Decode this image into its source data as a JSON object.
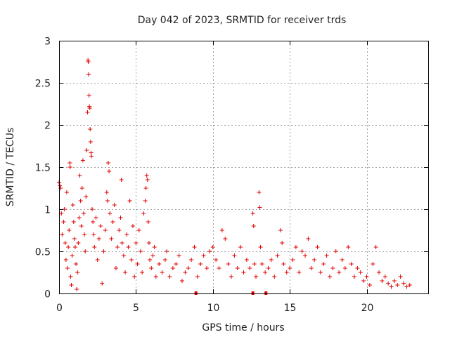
{
  "colors": {
    "series": "#e00000",
    "grid": "#a0a0a0",
    "frame": "#000000"
  },
  "chart_data": {
    "type": "scatter",
    "title": "Day 042 of 2023, SRMTID for receiver trds",
    "xlabel": "GPS time / hours",
    "ylabel": "SRMTID / TECUs",
    "xlim": [
      0,
      24
    ],
    "ylim": [
      0,
      3
    ],
    "grid": true,
    "marker": "+",
    "x_ticks": [
      {
        "value": 0,
        "label": "0"
      },
      {
        "value": 5,
        "label": "5"
      },
      {
        "value": 10,
        "label": "10"
      },
      {
        "value": 15,
        "label": "15"
      },
      {
        "value": 20,
        "label": "20"
      }
    ],
    "y_ticks": [
      {
        "value": 0,
        "label": "0"
      },
      {
        "value": 0.5,
        "label": "0.5"
      },
      {
        "value": 1,
        "label": "1"
      },
      {
        "value": 1.5,
        "label": "1.5"
      },
      {
        "value": 2,
        "label": "2"
      },
      {
        "value": 2.5,
        "label": "2.5"
      },
      {
        "value": 3,
        "label": "3"
      }
    ],
    "series": [
      {
        "name": "SRMTID",
        "points": [
          [
            0.0,
            1.32
          ],
          [
            0.05,
            1.28
          ],
          [
            0.1,
            1.25
          ],
          [
            0.15,
            0.95
          ],
          [
            0.2,
            0.7
          ],
          [
            0.3,
            0.85
          ],
          [
            0.35,
            1.0
          ],
          [
            0.4,
            0.6
          ],
          [
            0.45,
            0.4
          ],
          [
            0.5,
            1.2
          ],
          [
            0.55,
            0.3
          ],
          [
            0.6,
            0.55
          ],
          [
            0.65,
            0.75
          ],
          [
            0.7,
            1.55
          ],
          [
            0.72,
            1.5
          ],
          [
            0.75,
            0.2
          ],
          [
            0.8,
            0.1
          ],
          [
            0.85,
            0.45
          ],
          [
            0.9,
            1.05
          ],
          [
            0.95,
            0.85
          ],
          [
            1.0,
            0.65
          ],
          [
            1.05,
            0.55
          ],
          [
            1.1,
            0.35
          ],
          [
            1.15,
            0.05
          ],
          [
            1.2,
            0.25
          ],
          [
            1.25,
            0.6
          ],
          [
            1.3,
            0.9
          ],
          [
            1.35,
            1.4
          ],
          [
            1.4,
            1.1
          ],
          [
            1.45,
            0.8
          ],
          [
            1.5,
            1.25
          ],
          [
            1.55,
            1.58
          ],
          [
            1.6,
            0.95
          ],
          [
            1.65,
            0.7
          ],
          [
            1.7,
            0.5
          ],
          [
            1.75,
            1.15
          ],
          [
            1.8,
            1.7
          ],
          [
            1.85,
            2.15
          ],
          [
            1.88,
            2.77
          ],
          [
            1.9,
            2.75
          ],
          [
            1.92,
            2.6
          ],
          [
            1.95,
            2.35
          ],
          [
            1.97,
            2.22
          ],
          [
            2.0,
            2.2
          ],
          [
            2.02,
            1.95
          ],
          [
            2.05,
            1.8
          ],
          [
            2.08,
            1.67
          ],
          [
            2.1,
            1.63
          ],
          [
            2.15,
            1.0
          ],
          [
            2.2,
            0.85
          ],
          [
            2.25,
            0.7
          ],
          [
            2.3,
            0.55
          ],
          [
            2.4,
            0.9
          ],
          [
            2.5,
            0.4
          ],
          [
            2.6,
            0.65
          ],
          [
            2.7,
            0.8
          ],
          [
            2.8,
            0.12
          ],
          [
            2.9,
            0.5
          ],
          [
            3.0,
            0.75
          ],
          [
            3.1,
            1.2
          ],
          [
            3.15,
            1.1
          ],
          [
            3.2,
            1.55
          ],
          [
            3.25,
            1.45
          ],
          [
            3.3,
            0.95
          ],
          [
            3.4,
            0.65
          ],
          [
            3.5,
            0.85
          ],
          [
            3.6,
            1.05
          ],
          [
            3.7,
            0.3
          ],
          [
            3.8,
            0.55
          ],
          [
            3.9,
            0.75
          ],
          [
            4.0,
            0.9
          ],
          [
            4.05,
            1.35
          ],
          [
            4.1,
            0.6
          ],
          [
            4.2,
            0.45
          ],
          [
            4.3,
            0.25
          ],
          [
            4.4,
            0.7
          ],
          [
            4.5,
            0.55
          ],
          [
            4.6,
            1.1
          ],
          [
            4.7,
            0.4
          ],
          [
            4.8,
            0.8
          ],
          [
            4.9,
            0.2
          ],
          [
            5.0,
            0.6
          ],
          [
            5.1,
            0.35
          ],
          [
            5.2,
            0.75
          ],
          [
            5.3,
            0.5
          ],
          [
            5.4,
            0.25
          ],
          [
            5.5,
            0.95
          ],
          [
            5.6,
            1.1
          ],
          [
            5.65,
            1.25
          ],
          [
            5.7,
            1.4
          ],
          [
            5.75,
            1.35
          ],
          [
            5.8,
            0.85
          ],
          [
            5.85,
            0.6
          ],
          [
            5.9,
            0.4
          ],
          [
            6.0,
            0.3
          ],
          [
            6.1,
            0.45
          ],
          [
            6.2,
            0.55
          ],
          [
            6.3,
            0.2
          ],
          [
            6.5,
            0.35
          ],
          [
            6.7,
            0.25
          ],
          [
            6.9,
            0.4
          ],
          [
            7.0,
            0.5
          ],
          [
            7.2,
            0.2
          ],
          [
            7.4,
            0.3
          ],
          [
            7.6,
            0.35
          ],
          [
            7.8,
            0.45
          ],
          [
            8.0,
            0.15
          ],
          [
            8.2,
            0.25
          ],
          [
            8.4,
            0.3
          ],
          [
            8.6,
            0.4
          ],
          [
            8.8,
            0.55
          ],
          [
            9.0,
            0.2
          ],
          [
            9.2,
            0.35
          ],
          [
            9.4,
            0.45
          ],
          [
            9.6,
            0.3
          ],
          [
            9.8,
            0.5
          ],
          [
            10.0,
            0.55
          ],
          [
            10.2,
            0.4
          ],
          [
            10.4,
            0.3
          ],
          [
            10.6,
            0.75
          ],
          [
            10.8,
            0.65
          ],
          [
            11.0,
            0.35
          ],
          [
            11.2,
            0.2
          ],
          [
            11.4,
            0.45
          ],
          [
            11.6,
            0.3
          ],
          [
            11.8,
            0.55
          ],
          [
            12.0,
            0.25
          ],
          [
            12.2,
            0.4
          ],
          [
            12.4,
            0.3
          ],
          [
            12.6,
            0.95
          ],
          [
            12.65,
            0.8
          ],
          [
            12.7,
            0.35
          ],
          [
            12.8,
            0.2
          ],
          [
            13.0,
            1.2
          ],
          [
            13.05,
            1.02
          ],
          [
            13.1,
            0.55
          ],
          [
            13.2,
            0.35
          ],
          [
            13.4,
            0.25
          ],
          [
            13.6,
            0.3
          ],
          [
            13.8,
            0.4
          ],
          [
            14.0,
            0.2
          ],
          [
            14.2,
            0.45
          ],
          [
            14.4,
            0.75
          ],
          [
            14.5,
            0.6
          ],
          [
            14.6,
            0.35
          ],
          [
            14.8,
            0.25
          ],
          [
            15.0,
            0.3
          ],
          [
            15.2,
            0.4
          ],
          [
            15.4,
            0.55
          ],
          [
            15.6,
            0.25
          ],
          [
            15.8,
            0.5
          ],
          [
            16.0,
            0.45
          ],
          [
            16.2,
            0.65
          ],
          [
            16.4,
            0.3
          ],
          [
            16.6,
            0.4
          ],
          [
            16.8,
            0.55
          ],
          [
            17.0,
            0.25
          ],
          [
            17.2,
            0.35
          ],
          [
            17.4,
            0.45
          ],
          [
            17.6,
            0.2
          ],
          [
            17.8,
            0.3
          ],
          [
            18.0,
            0.5
          ],
          [
            18.2,
            0.25
          ],
          [
            18.4,
            0.4
          ],
          [
            18.6,
            0.3
          ],
          [
            18.8,
            0.55
          ],
          [
            19.0,
            0.35
          ],
          [
            19.2,
            0.2
          ],
          [
            19.4,
            0.3
          ],
          [
            19.6,
            0.25
          ],
          [
            19.8,
            0.15
          ],
          [
            20.0,
            0.2
          ],
          [
            20.2,
            0.1
          ],
          [
            20.4,
            0.35
          ],
          [
            20.6,
            0.55
          ],
          [
            20.8,
            0.25
          ],
          [
            21.0,
            0.15
          ],
          [
            21.2,
            0.2
          ],
          [
            21.4,
            0.12
          ],
          [
            21.6,
            0.08
          ],
          [
            21.8,
            0.15
          ],
          [
            22.0,
            0.1
          ],
          [
            22.2,
            0.2
          ],
          [
            22.4,
            0.12
          ],
          [
            22.6,
            0.08
          ],
          [
            22.8,
            0.1
          ]
        ]
      }
    ],
    "gap_markers_x": [
      8.9,
      12.6,
      13.45
    ]
  }
}
